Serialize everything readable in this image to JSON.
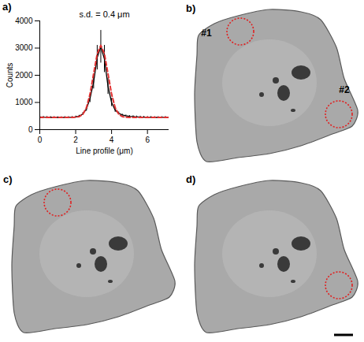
{
  "chart_data": {
    "type": "line",
    "title": "s.d. = 0.4 μm",
    "xlabel": "Line profile (μm)",
    "ylabel": "Counts",
    "x": [
      0,
      0.2,
      0.4,
      0.6,
      0.8,
      1.0,
      1.2,
      1.4,
      1.6,
      1.8,
      2.0,
      2.2,
      2.4,
      2.6,
      2.8,
      3.0,
      3.2,
      3.4,
      3.6,
      3.8,
      4.0,
      4.2,
      4.4,
      4.6,
      4.8,
      5.0,
      5.2,
      5.4,
      5.6,
      5.8,
      6.0,
      6.2,
      6.4,
      6.6,
      6.8,
      7.0,
      7.2
    ],
    "series": [
      {
        "color": "#000000",
        "line_style": "solid",
        "values": [
          470,
          460,
          455,
          450,
          450,
          445,
          445,
          450,
          450,
          455,
          470,
          500,
          580,
          760,
          1150,
          1750,
          2650,
          3050,
          2600,
          1600,
          1000,
          720,
          600,
          540,
          510,
          490,
          480,
          470,
          465,
          460,
          455,
          455,
          450,
          450,
          450,
          455,
          460
        ],
        "error": [
          30,
          30,
          30,
          30,
          30,
          30,
          30,
          30,
          30,
          30,
          30,
          30,
          50,
          80,
          150,
          250,
          450,
          600,
          500,
          300,
          150,
          80,
          50,
          30,
          30,
          30,
          30,
          30,
          30,
          30,
          30,
          30,
          30,
          30,
          30,
          30,
          30
        ]
      },
      {
        "color": "#e03030",
        "line_style": "dashed",
        "values": [
          450,
          450,
          450,
          450,
          450,
          450,
          450,
          450,
          450,
          450,
          456,
          479,
          566,
          809,
          1310,
          2057,
          2789,
          3100,
          2789,
          2057,
          1310,
          809,
          566,
          479,
          456,
          450,
          450,
          450,
          450,
          450,
          450,
          450,
          450,
          450,
          450,
          450,
          450
        ]
      }
    ],
    "xlim": [
      0,
      7.2
    ],
    "xticks": [
      0,
      2,
      4,
      6
    ],
    "ylim": [
      0,
      4000
    ],
    "yticks": [
      0,
      1000,
      2000,
      3000,
      4000
    ]
  },
  "figure": {
    "panels": [
      {
        "label": "a)"
      },
      {
        "label": "b)",
        "circles": [
          "#1",
          "#2"
        ]
      },
      {
        "label": "c)",
        "circles": [
          null
        ]
      },
      {
        "label": "d)",
        "circles": [
          null
        ]
      }
    ]
  }
}
